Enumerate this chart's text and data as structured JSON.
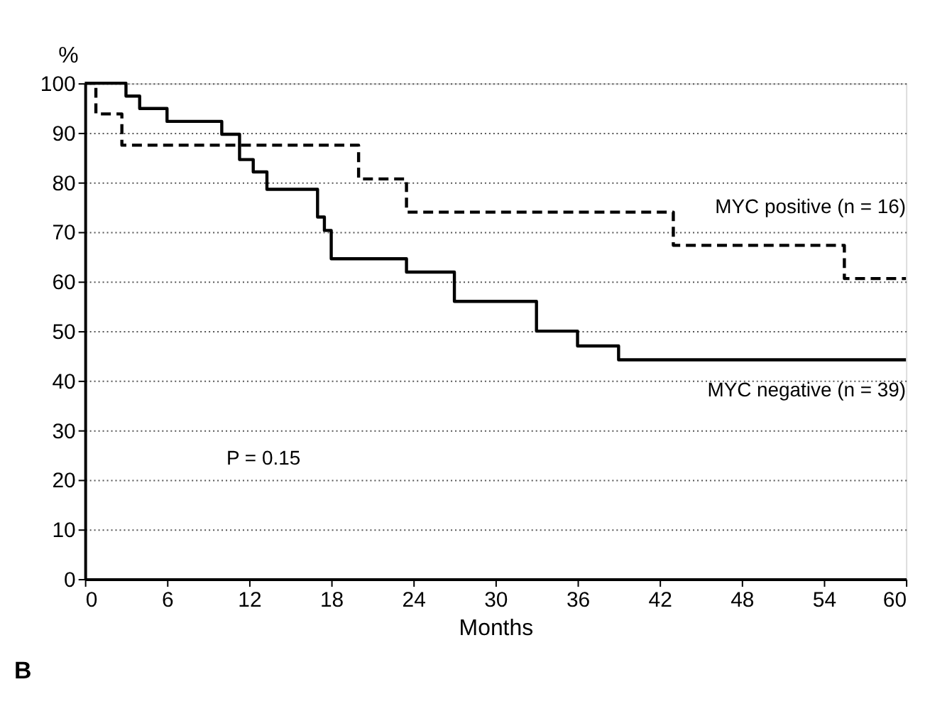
{
  "chart_data": {
    "type": "step",
    "ylabel": "%",
    "xlabel": "Months",
    "xlim": [
      0,
      60
    ],
    "xticks": [
      0,
      6,
      12,
      18,
      24,
      30,
      36,
      42,
      48,
      54,
      60
    ],
    "ylim": [
      0,
      100
    ],
    "yticks": [
      0,
      10,
      20,
      30,
      40,
      50,
      60,
      70,
      80,
      90,
      100
    ],
    "grid": "y",
    "marker": "none",
    "annotations": [
      "P = 0.15",
      "B"
    ],
    "series": [
      {
        "name": "MYC positive (n = 16)",
        "color": "#000000",
        "line_style": "dashed",
        "x": [
          0,
          0.8,
          2.7,
          20,
          23.5,
          43,
          55.5,
          60
        ],
        "values": [
          100,
          93.8,
          87.5,
          80.7,
          74,
          67.3,
          60.6,
          60.6
        ]
      },
      {
        "name": "MYC negative (n = 39)",
        "color": "#000000",
        "line_style": "solid",
        "x": [
          0,
          3,
          4,
          6,
          10,
          11.3,
          12.3,
          13.3,
          17,
          17.5,
          18,
          23.5,
          27,
          33,
          36,
          39,
          60
        ],
        "values": [
          100,
          97.4,
          94.9,
          92.3,
          89.7,
          84.6,
          82.1,
          78.6,
          73,
          70.3,
          64.6,
          61.9,
          56,
          50,
          47,
          44.2,
          44.2
        ]
      }
    ]
  }
}
